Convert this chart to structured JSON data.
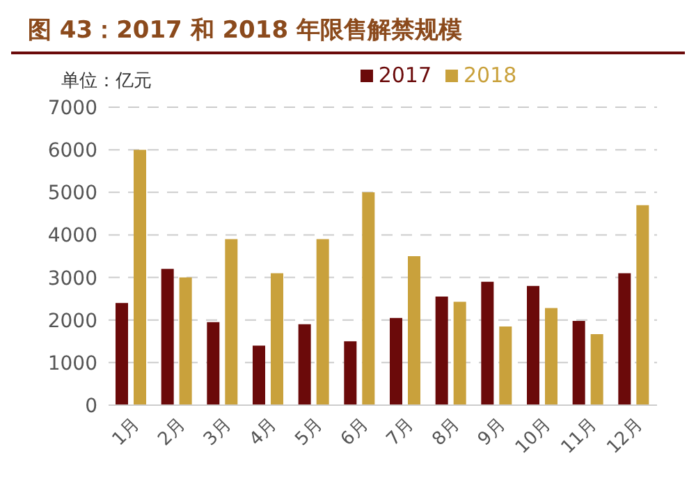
{
  "chart_data": {
    "type": "bar",
    "title": "图 43：2017 和 2018 年限售解禁规模",
    "ylabel": "单位：亿元",
    "categories": [
      "1月",
      "2月",
      "3月",
      "4月",
      "5月",
      "6月",
      "7月",
      "8月",
      "9月",
      "10月",
      "11月",
      "12月"
    ],
    "series": [
      {
        "name": "2017",
        "color": "#6b0a0a",
        "values": [
          2400,
          3200,
          1950,
          1400,
          1900,
          1500,
          2050,
          2550,
          2900,
          2800,
          1980,
          3100
        ]
      },
      {
        "name": "2018",
        "color": "#c9a13c",
        "values": [
          6000,
          3000,
          3900,
          3100,
          3900,
          5000,
          3500,
          2430,
          1850,
          2280,
          1670,
          4700
        ]
      }
    ],
    "ylim": [
      0,
      7000
    ],
    "yticks": [
      0,
      1000,
      2000,
      3000,
      4000,
      5000,
      6000,
      7000
    ],
    "grid": "y",
    "legend": "top"
  }
}
